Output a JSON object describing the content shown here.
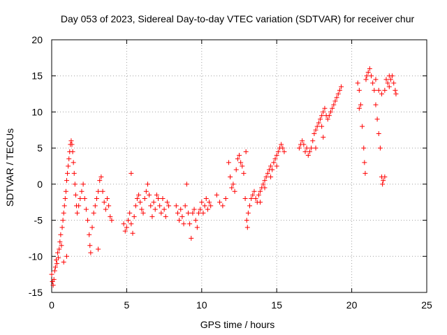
{
  "chart_data": {
    "type": "scatter",
    "title": "Day 053 of 2023, Sidereal Day-to-day VTEC variation (SDTVAR) for receiver chur",
    "xlabel": "GPS time / hours",
    "ylabel": "SDTVAR / TECUs",
    "xlim": [
      0,
      25
    ],
    "ylim": [
      -15,
      20
    ],
    "xticks": [
      0,
      5,
      10,
      15,
      20,
      25
    ],
    "yticks": [
      -15,
      -10,
      -5,
      0,
      5,
      10,
      15,
      20
    ],
    "grid": true,
    "marker": "+",
    "color": "#ff0000",
    "series": [
      {
        "name": "SDTVAR",
        "points": [
          [
            0.0,
            -12.5
          ],
          [
            0.05,
            -13.5
          ],
          [
            0.1,
            -14.0
          ],
          [
            0.15,
            -13.2
          ],
          [
            0.2,
            -12.0
          ],
          [
            0.25,
            -11.5
          ],
          [
            0.3,
            -10.5
          ],
          [
            0.35,
            -11.0
          ],
          [
            0.4,
            -9.5
          ],
          [
            0.45,
            -10.2
          ],
          [
            0.5,
            -9.0
          ],
          [
            0.55,
            -8.0
          ],
          [
            0.6,
            -7.0
          ],
          [
            0.65,
            -8.5
          ],
          [
            0.7,
            -6.0
          ],
          [
            0.75,
            -5.0
          ],
          [
            0.8,
            -4.0
          ],
          [
            0.85,
            -3.0
          ],
          [
            0.9,
            -2.0
          ],
          [
            0.95,
            -1.0
          ],
          [
            1.0,
            0.5
          ],
          [
            1.05,
            1.5
          ],
          [
            1.1,
            2.5
          ],
          [
            1.15,
            3.5
          ],
          [
            1.2,
            4.5
          ],
          [
            1.25,
            5.5
          ],
          [
            1.3,
            6.0
          ],
          [
            1.35,
            5.5
          ],
          [
            1.4,
            4.5
          ],
          [
            1.45,
            3.0
          ],
          [
            1.5,
            1.5
          ],
          [
            1.55,
            0.0
          ],
          [
            1.6,
            -1.5
          ],
          [
            1.65,
            -3.0
          ],
          [
            1.7,
            -4.0
          ],
          [
            1.8,
            -3.0
          ],
          [
            1.9,
            -2.0
          ],
          [
            2.0,
            -1.0
          ],
          [
            2.1,
            0.0
          ],
          [
            2.2,
            -2.0
          ],
          [
            2.3,
            -3.5
          ],
          [
            2.4,
            -5.0
          ],
          [
            2.5,
            -7.0
          ],
          [
            2.55,
            -8.5
          ],
          [
            2.6,
            -9.5
          ],
          [
            2.7,
            -6.0
          ],
          [
            2.8,
            -4.0
          ],
          [
            2.9,
            -3.0
          ],
          [
            3.0,
            -2.0
          ],
          [
            3.1,
            -1.0
          ],
          [
            3.2,
            0.5
          ],
          [
            3.3,
            1.0
          ],
          [
            3.4,
            -1.0
          ],
          [
            3.5,
            -2.5
          ],
          [
            3.6,
            -3.5
          ],
          [
            3.7,
            -2.0
          ],
          [
            3.8,
            -3.0
          ],
          [
            3.9,
            -4.5
          ],
          [
            4.0,
            -5.0
          ],
          [
            3.1,
            -9.0
          ],
          [
            1.0,
            -10.0
          ],
          [
            0.8,
            -10.8
          ],
          [
            4.8,
            -5.5
          ],
          [
            4.9,
            -6.5
          ],
          [
            5.0,
            -6.0
          ],
          [
            5.1,
            -5.0
          ],
          [
            5.2,
            -4.0
          ],
          [
            5.3,
            -5.5
          ],
          [
            5.4,
            -6.8
          ],
          [
            5.5,
            -4.5
          ],
          [
            5.6,
            -3.0
          ],
          [
            5.7,
            -2.0
          ],
          [
            5.8,
            -1.5
          ],
          [
            5.9,
            -2.5
          ],
          [
            6.0,
            -3.5
          ],
          [
            6.1,
            -4.0
          ],
          [
            6.2,
            -2.0
          ],
          [
            6.3,
            -1.0
          ],
          [
            6.4,
            0.0
          ],
          [
            6.5,
            -1.5
          ],
          [
            6.6,
            -3.0
          ],
          [
            6.7,
            -4.5
          ],
          [
            6.8,
            -2.5
          ],
          [
            6.9,
            -3.5
          ],
          [
            7.0,
            -1.5
          ],
          [
            7.1,
            -2.0
          ],
          [
            7.2,
            -3.0
          ],
          [
            7.3,
            -4.0
          ],
          [
            7.4,
            -2.0
          ],
          [
            7.5,
            -3.5
          ],
          [
            7.6,
            -4.5
          ],
          [
            7.7,
            -2.5
          ],
          [
            7.8,
            -3.0
          ],
          [
            5.3,
            1.5
          ],
          [
            8.3,
            -3.0
          ],
          [
            8.4,
            -4.0
          ],
          [
            8.5,
            -5.0
          ],
          [
            8.6,
            -3.5
          ],
          [
            8.7,
            -4.5
          ],
          [
            8.8,
            -5.5
          ],
          [
            8.9,
            -3.0
          ],
          [
            9.0,
            0.0
          ],
          [
            9.1,
            -4.0
          ],
          [
            9.2,
            -5.5
          ],
          [
            9.3,
            -7.5
          ],
          [
            9.4,
            -4.0
          ],
          [
            9.5,
            -3.5
          ],
          [
            9.6,
            -5.0
          ],
          [
            9.7,
            -6.0
          ],
          [
            9.8,
            -4.0
          ],
          [
            9.9,
            -3.5
          ],
          [
            10.0,
            -2.5
          ],
          [
            10.1,
            -4.0
          ],
          [
            10.2,
            -3.0
          ],
          [
            10.3,
            -2.0
          ],
          [
            10.4,
            -3.5
          ],
          [
            10.5,
            -2.5
          ],
          [
            10.6,
            -3.0
          ],
          [
            11.0,
            -1.5
          ],
          [
            11.2,
            -2.5
          ],
          [
            11.4,
            -3.0
          ],
          [
            11.6,
            -2.0
          ],
          [
            11.8,
            3.0
          ],
          [
            11.9,
            1.0
          ],
          [
            12.0,
            -0.5
          ],
          [
            12.1,
            0.0
          ],
          [
            12.2,
            -1.0
          ],
          [
            12.3,
            2.0
          ],
          [
            12.4,
            3.5
          ],
          [
            12.5,
            4.0
          ],
          [
            12.6,
            3.0
          ],
          [
            12.7,
            2.5
          ],
          [
            12.8,
            1.5
          ],
          [
            12.9,
            -2.0
          ],
          [
            13.0,
            -5.0
          ],
          [
            13.05,
            -6.0
          ],
          [
            13.1,
            -4.0
          ],
          [
            13.2,
            -3.0
          ],
          [
            13.3,
            -2.0
          ],
          [
            13.4,
            -1.5
          ],
          [
            13.5,
            -1.0
          ],
          [
            13.6,
            -2.0
          ],
          [
            13.7,
            -2.5
          ],
          [
            13.8,
            -1.5
          ],
          [
            13.9,
            -1.0
          ],
          [
            14.0,
            -0.5
          ],
          [
            14.1,
            0.0
          ],
          [
            14.2,
            0.5
          ],
          [
            14.3,
            1.0
          ],
          [
            14.4,
            1.5
          ],
          [
            14.5,
            2.0
          ],
          [
            14.6,
            2.5
          ],
          [
            14.7,
            2.0
          ],
          [
            14.8,
            3.0
          ],
          [
            14.9,
            3.5
          ],
          [
            15.0,
            4.0
          ],
          [
            15.1,
            4.5
          ],
          [
            15.2,
            5.0
          ],
          [
            15.3,
            5.5
          ],
          [
            15.4,
            5.0
          ],
          [
            15.5,
            4.5
          ],
          [
            12.95,
            4.5
          ],
          [
            14.2,
            -0.5
          ],
          [
            14.6,
            1.0
          ],
          [
            15.0,
            2.5
          ],
          [
            13.9,
            -2.5
          ],
          [
            16.5,
            5.0
          ],
          [
            16.6,
            5.5
          ],
          [
            16.7,
            6.0
          ],
          [
            16.8,
            5.5
          ],
          [
            16.9,
            4.5
          ],
          [
            17.0,
            5.0
          ],
          [
            17.1,
            4.0
          ],
          [
            17.2,
            4.5
          ],
          [
            17.3,
            5.0
          ],
          [
            17.4,
            6.0
          ],
          [
            17.5,
            7.0
          ],
          [
            17.6,
            7.5
          ],
          [
            17.7,
            8.0
          ],
          [
            17.8,
            8.5
          ],
          [
            17.9,
            9.0
          ],
          [
            18.0,
            9.5
          ],
          [
            18.1,
            10.0
          ],
          [
            18.2,
            10.5
          ],
          [
            18.3,
            9.5
          ],
          [
            18.4,
            9.0
          ],
          [
            18.5,
            9.5
          ],
          [
            18.6,
            10.0
          ],
          [
            18.7,
            10.5
          ],
          [
            18.8,
            11.0
          ],
          [
            18.9,
            11.5
          ],
          [
            19.0,
            12.0
          ],
          [
            19.1,
            12.5
          ],
          [
            19.2,
            13.0
          ],
          [
            19.3,
            13.5
          ],
          [
            18.1,
            6.5
          ],
          [
            18.0,
            8.0
          ],
          [
            17.6,
            5.0
          ],
          [
            20.4,
            14.0
          ],
          [
            20.5,
            13.0
          ],
          [
            20.6,
            11.0
          ],
          [
            20.7,
            8.0
          ],
          [
            20.8,
            5.0
          ],
          [
            20.85,
            3.0
          ],
          [
            20.9,
            1.5
          ],
          [
            20.95,
            14.5
          ],
          [
            21.0,
            15.0
          ],
          [
            21.1,
            15.5
          ],
          [
            21.2,
            16.0
          ],
          [
            21.3,
            15.0
          ],
          [
            21.4,
            14.0
          ],
          [
            21.5,
            13.0
          ],
          [
            21.6,
            11.0
          ],
          [
            21.7,
            9.0
          ],
          [
            21.8,
            7.0
          ],
          [
            21.9,
            5.0
          ],
          [
            22.0,
            1.0
          ],
          [
            22.05,
            0.0
          ],
          [
            22.1,
            0.5
          ],
          [
            22.2,
            1.0
          ],
          [
            21.6,
            14.5
          ],
          [
            21.8,
            13.0
          ],
          [
            22.0,
            12.5
          ],
          [
            22.2,
            13.0
          ],
          [
            22.4,
            14.0
          ],
          [
            22.5,
            13.5
          ],
          [
            22.6,
            14.5
          ],
          [
            22.7,
            15.0
          ],
          [
            22.8,
            14.0
          ],
          [
            22.9,
            13.0
          ],
          [
            22.95,
            12.5
          ],
          [
            22.3,
            14.5
          ],
          [
            22.5,
            15.0
          ],
          [
            20.5,
            10.5
          ]
        ]
      }
    ]
  }
}
